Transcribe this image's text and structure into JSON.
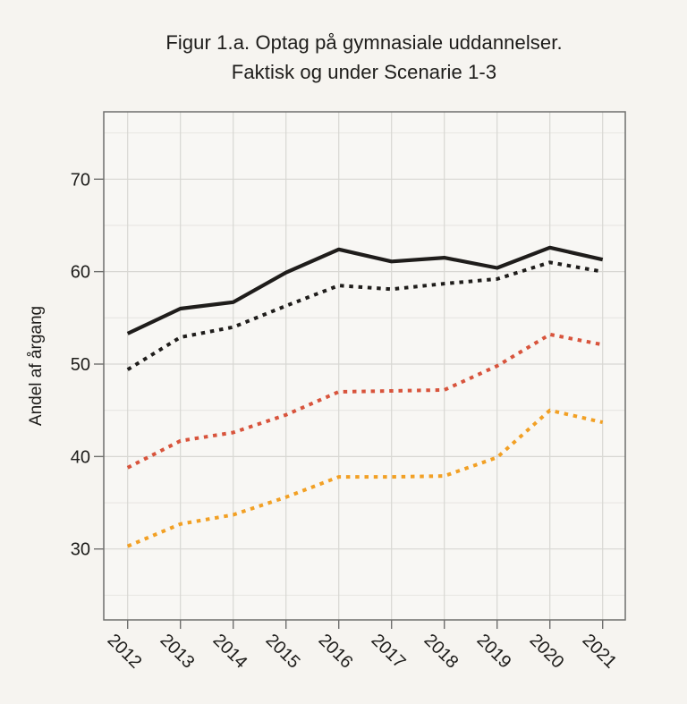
{
  "figure": {
    "title_line1": "Figur 1.a. Optag på gymnasiale uddannelser.",
    "title_line2": "Faktisk og under Scenarie 1-3"
  },
  "chart_data": {
    "type": "line",
    "title": "Figur 1.a. Optag på gymnasiale uddannelser. Faktisk og under Scenarie 1-3",
    "xlabel": "",
    "ylabel": "Andel af årgang",
    "x_tick_labels": [
      "2012",
      "2013",
      "2014",
      "2015",
      "2016",
      "2017",
      "2018",
      "2019",
      "2020",
      "2021"
    ],
    "yticks_major": [
      30,
      40,
      50,
      60,
      70
    ],
    "yticks_minor": [
      25,
      35,
      45,
      55,
      65,
      75
    ],
    "ylim": [
      22.5,
      77.5
    ],
    "grid": true,
    "legend_position": "none",
    "series": [
      {
        "name": "faktisk-solid-black",
        "line_style": "solid",
        "color": "#1f1d1b",
        "values": [
          53.3,
          56.0,
          56.7,
          59.9,
          62.4,
          61.1,
          61.5,
          60.4,
          62.6,
          61.3
        ]
      },
      {
        "name": "scenarie-dotted-black",
        "line_style": "dotted",
        "color": "#1f1d1b",
        "values": [
          49.4,
          52.9,
          54.0,
          56.3,
          58.5,
          58.1,
          58.7,
          59.2,
          61.0,
          60.0
        ]
      },
      {
        "name": "scenarie-dotted-red",
        "line_style": "dotted",
        "color": "#d8543c",
        "values": [
          38.8,
          41.7,
          42.6,
          44.5,
          47.0,
          47.1,
          47.2,
          49.8,
          53.2,
          52.1
        ]
      },
      {
        "name": "scenarie-dotted-orange",
        "line_style": "dotted",
        "color": "#f2a024",
        "values": [
          30.3,
          32.7,
          33.7,
          35.6,
          37.8,
          37.8,
          37.9,
          39.9,
          45.0,
          43.7
        ]
      }
    ],
    "colors": {
      "background": "#f6f4f0",
      "panel": "#f8f7f4",
      "grid_major": "#d8d7d3",
      "grid_minor": "#e7e6e2",
      "border": "#6f6f6d",
      "tick": "#6f6f6d",
      "text": "#1d1c1a"
    }
  }
}
